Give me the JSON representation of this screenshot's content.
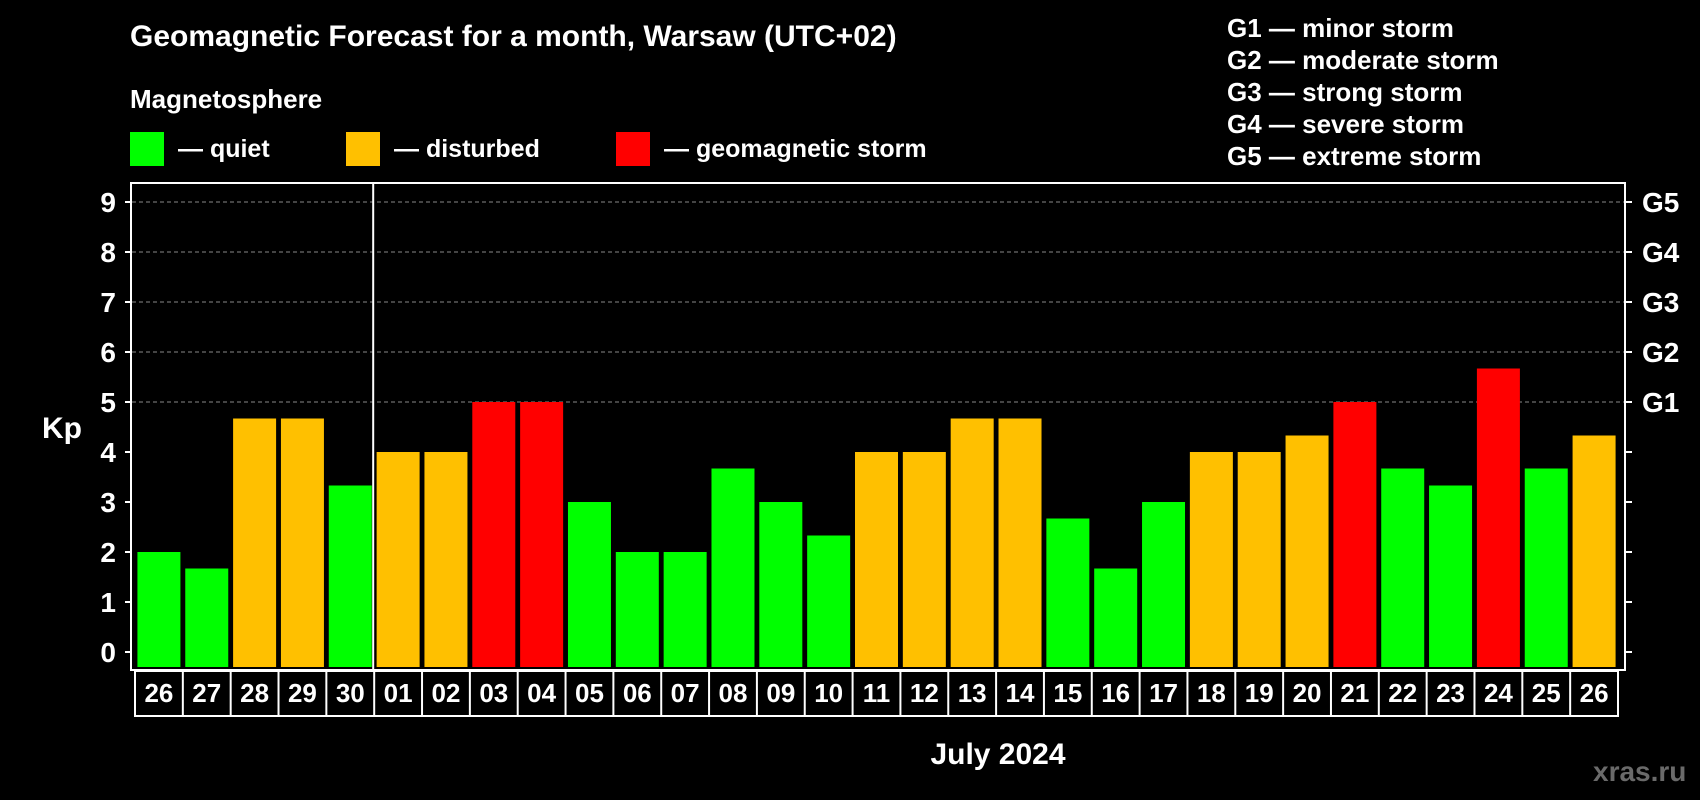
{
  "header": {
    "title": "Geomagnetic Forecast for a month, Warsaw (UTC+02)",
    "subtitle": "Magnetosphere"
  },
  "legend": {
    "items": [
      {
        "label": "— quiet",
        "color": "#00ff00"
      },
      {
        "label": "— disturbed",
        "color": "#ffc000"
      },
      {
        "label": "— geomagnetic storm",
        "color": "#ff0000"
      }
    ]
  },
  "storm_levels": [
    {
      "text": "G1 — minor storm"
    },
    {
      "text": "G2 — moderate storm"
    },
    {
      "text": "G3 — strong storm"
    },
    {
      "text": "G4 — severe storm"
    },
    {
      "text": "G5 — extreme storm"
    }
  ],
  "chart_data": {
    "type": "bar",
    "ylabel": "Kp",
    "xlabel": "July 2024",
    "ylim": [
      0,
      9
    ],
    "yticks": [
      "0",
      "1",
      "2",
      "3",
      "4",
      "5",
      "6",
      "7",
      "8",
      "9"
    ],
    "right_axis": [
      {
        "kp": 5,
        "label": "G1"
      },
      {
        "kp": 6,
        "label": "G2"
      },
      {
        "kp": 7,
        "label": "G3"
      },
      {
        "kp": 8,
        "label": "G4"
      },
      {
        "kp": 9,
        "label": "G5"
      }
    ],
    "grid": "dashed horizontal at 5–9",
    "month_divider_after": "30",
    "categories": [
      "26",
      "27",
      "28",
      "29",
      "30",
      "01",
      "02",
      "03",
      "04",
      "05",
      "06",
      "07",
      "08",
      "09",
      "10",
      "11",
      "12",
      "13",
      "14",
      "15",
      "16",
      "17",
      "18",
      "19",
      "20",
      "21",
      "22",
      "23",
      "24",
      "25",
      "26"
    ],
    "values": [
      2,
      1.67,
      4.67,
      4.67,
      3.33,
      4,
      4,
      5,
      5,
      3,
      2,
      2,
      3.67,
      3,
      2.33,
      4,
      4,
      4.67,
      4.67,
      2.67,
      1.67,
      3,
      4,
      4,
      4.33,
      5,
      3.67,
      3.33,
      5.67,
      3.67,
      4.33
    ],
    "status": [
      "quiet",
      "quiet",
      "disturbed",
      "disturbed",
      "quiet",
      "disturbed",
      "disturbed",
      "storm",
      "storm",
      "quiet",
      "quiet",
      "quiet",
      "quiet",
      "quiet",
      "quiet",
      "disturbed",
      "disturbed",
      "disturbed",
      "disturbed",
      "quiet",
      "quiet",
      "quiet",
      "disturbed",
      "disturbed",
      "disturbed",
      "storm",
      "quiet",
      "quiet",
      "storm",
      "quiet",
      "disturbed"
    ],
    "colors": {
      "quiet": "#00ff00",
      "disturbed": "#ffc000",
      "storm": "#ff0000"
    }
  },
  "watermark": "xras.ru"
}
